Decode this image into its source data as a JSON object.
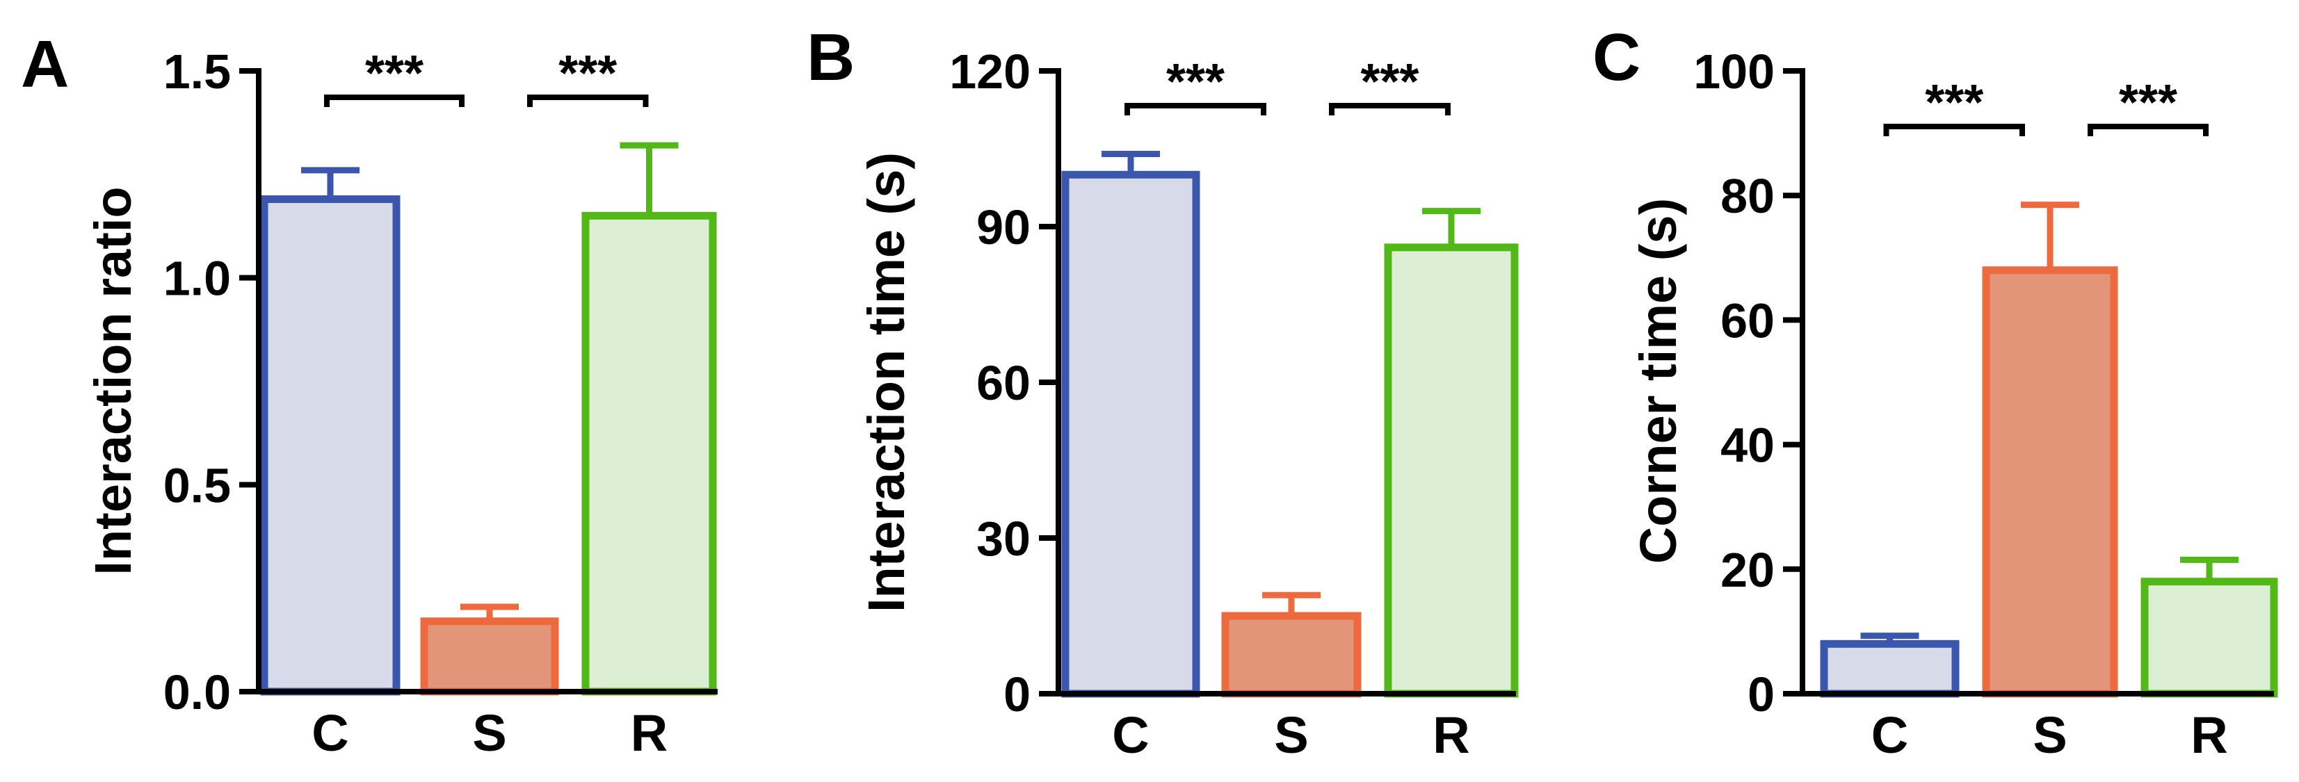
{
  "chart_data": [
    {
      "type": "bar",
      "panel_label": "A",
      "categories": [
        "C",
        "S",
        "R"
      ],
      "values": [
        1.19,
        0.17,
        1.15
      ],
      "errors": [
        0.07,
        0.035,
        0.17
      ],
      "ylabel": "Interaction ratio",
      "ylim": [
        0,
        1.5
      ],
      "yticks": [
        0.0,
        0.5,
        1.0,
        1.5
      ],
      "ytick_labels": [
        "0.0",
        "0.5",
        "1.0",
        "1.5"
      ],
      "significance": [
        {
          "from": 0,
          "to": 1,
          "label": "***"
        },
        {
          "from": 1,
          "to": 2,
          "label": "***"
        }
      ],
      "bar_edge_colors": [
        "#3b57ad",
        "#ed6a3e",
        "#52b817"
      ],
      "bar_fill_colors": [
        "#d6dae9",
        "#e3957a",
        "#dcefd4"
      ]
    },
    {
      "type": "bar",
      "panel_label": "B",
      "categories": [
        "C",
        "S",
        "R"
      ],
      "values": [
        100,
        15,
        86
      ],
      "errors": [
        4,
        4,
        7
      ],
      "ylabel": "Interaction time (s)",
      "ylim": [
        0,
        120
      ],
      "yticks": [
        0,
        30,
        60,
        90,
        120
      ],
      "ytick_labels": [
        "0",
        "30",
        "60",
        "90",
        "120"
      ],
      "significance": [
        {
          "from": 0,
          "to": 1,
          "label": "***"
        },
        {
          "from": 1,
          "to": 2,
          "label": "***"
        }
      ],
      "bar_edge_colors": [
        "#3b57ad",
        "#ed6a3e",
        "#52b817"
      ],
      "bar_fill_colors": [
        "#d6dae9",
        "#e3957a",
        "#dcefd4"
      ]
    },
    {
      "type": "bar",
      "panel_label": "C",
      "categories": [
        "C",
        "S",
        "R"
      ],
      "values": [
        8,
        68,
        18
      ],
      "errors": [
        1.3,
        10.5,
        3.5
      ],
      "ylabel": "Corner time (s)",
      "ylim": [
        0,
        100
      ],
      "yticks": [
        0,
        20,
        40,
        60,
        80,
        100
      ],
      "ytick_labels": [
        "0",
        "20",
        "40",
        "60",
        "80",
        "100"
      ],
      "significance": [
        {
          "from": 0,
          "to": 1,
          "label": "***"
        },
        {
          "from": 1,
          "to": 2,
          "label": "***"
        }
      ],
      "bar_edge_colors": [
        "#3b57ad",
        "#ed6a3e",
        "#52b817"
      ],
      "bar_fill_colors": [
        "#d6dae9",
        "#e3957a",
        "#dcefd4"
      ]
    }
  ]
}
